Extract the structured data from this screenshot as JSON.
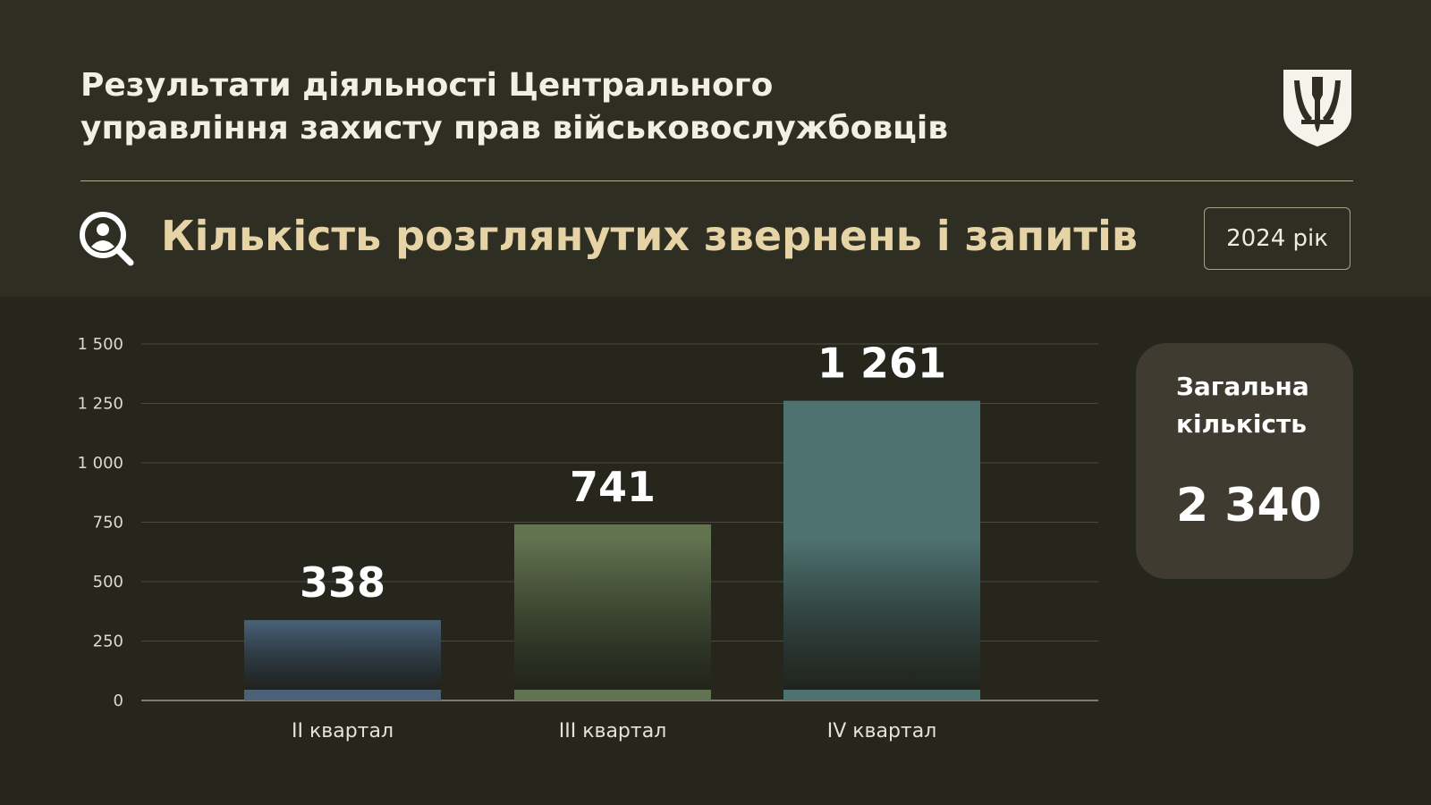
{
  "header": {
    "title_line1": "Результати діяльності Центрального",
    "title_line2": "управління захисту прав військовослужбовців",
    "emblem_icon": "trident-shield-icon"
  },
  "section": {
    "icon": "search-person-icon",
    "title": "Кількість розглянутих звернень і запитів",
    "year_label": "2024 рік"
  },
  "summary": {
    "label": "Загальна кількість",
    "value": "2 340"
  },
  "colors": {
    "background": "#26261d",
    "header_background": "#2f2e23",
    "title_accent": "#e6d4a6",
    "card_background": "#403b30",
    "bar_q2": "#4a6278",
    "bar_q3": "#627350",
    "bar_q4": "#4e7270"
  },
  "chart_data": {
    "type": "bar",
    "categories": [
      "II квартал",
      "III квартал",
      "IV квартал"
    ],
    "values": [
      338,
      741,
      1261
    ],
    "value_labels": [
      "338",
      "741",
      "1 261"
    ],
    "ylim": [
      0,
      1500
    ],
    "yticks": [
      0,
      250,
      500,
      750,
      1000,
      1250,
      1500
    ],
    "ytick_labels": [
      "0",
      "250",
      "500",
      "750",
      "1 000",
      "1 250",
      "1 500"
    ],
    "grid": true,
    "legend": "none"
  }
}
